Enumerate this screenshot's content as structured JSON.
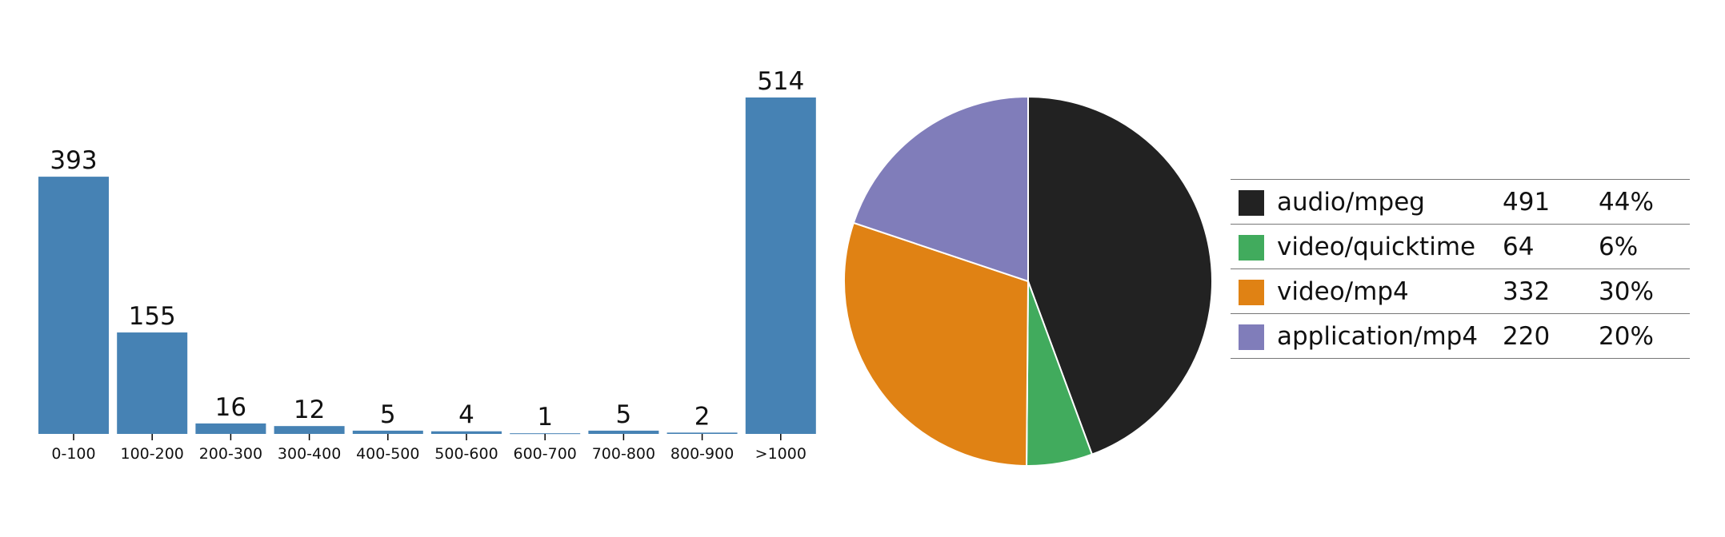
{
  "chart_data": [
    {
      "type": "bar",
      "title": "",
      "xlabel": "",
      "ylabel": "",
      "categories": [
        "0-100",
        "100-200",
        "200-300",
        "300-400",
        "400-500",
        "500-600",
        "600-700",
        "700-800",
        "800-900",
        ">1000"
      ],
      "values": [
        393,
        155,
        16,
        12,
        5,
        4,
        1,
        5,
        2,
        514
      ],
      "data_labels": [
        "393",
        "155",
        "16",
        "12",
        "5",
        "4",
        "1",
        "5",
        "2",
        "514"
      ],
      "ylim": [
        0,
        514
      ],
      "bar_color": "#4682b4",
      "grid": false
    },
    {
      "type": "pie",
      "title": "",
      "slices": [
        {
          "label": "audio/mpeg",
          "value": 491,
          "percent": "44%",
          "color": "#222222"
        },
        {
          "label": "video/quicktime",
          "value": 64,
          "percent": "6%",
          "color": "#41ab5d"
        },
        {
          "label": "video/mp4",
          "value": 332,
          "percent": "30%",
          "color": "#e08214"
        },
        {
          "label": "application/mp4",
          "value": 220,
          "percent": "20%",
          "color": "#807dba"
        }
      ],
      "legend_placement": "right"
    }
  ]
}
